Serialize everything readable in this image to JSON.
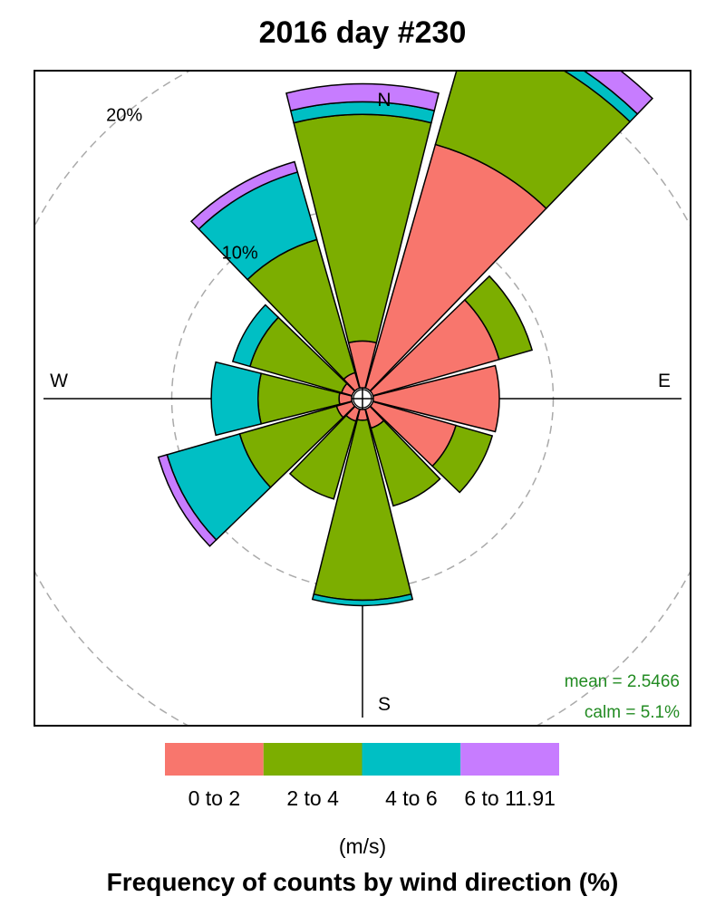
{
  "chart_data": {
    "type": "windrose",
    "title": "2016 day #230",
    "compass": {
      "north": "N",
      "east": "E",
      "south": "S",
      "west": "W"
    },
    "rings": [
      {
        "value": 10,
        "label": "10%"
      },
      {
        "value": 20,
        "label": "20%"
      }
    ],
    "directions": [
      0,
      30,
      60,
      90,
      120,
      150,
      180,
      210,
      240,
      270,
      300,
      330
    ],
    "series": [
      {
        "name": "0 to 2",
        "color": "#F8766D",
        "values": [
          2.6,
          14.1,
          7.3,
          7.0,
          4.8,
          1.1,
          0.6,
          0.7,
          0.9,
          0.7,
          0.6,
          0.9
        ]
      },
      {
        "name": "2 to 4",
        "color": "#7CAE00",
        "values": [
          12.6,
          6.7,
          1.9,
          0.0,
          2.1,
          4.5,
          10.0,
          4.5,
          5.6,
          4.5,
          5.3,
          7.7
        ]
      },
      {
        "name": "4 to 6",
        "color": "#00BFC4",
        "values": [
          0.7,
          0.6,
          0.0,
          0.0,
          0.0,
          0.0,
          0.3,
          0.0,
          4.2,
          2.6,
          1.0,
          3.9
        ]
      },
      {
        "name": "6 to 11.91",
        "color": "#C77CFF",
        "values": [
          1.0,
          1.2,
          0.0,
          0.0,
          0.0,
          0.0,
          0.0,
          0.0,
          0.5,
          0.0,
          0.0,
          0.6
        ]
      }
    ],
    "mean_label": "mean = 2.5466",
    "calm_label": "calm = 5.1%",
    "legend_unit": "(m/s)",
    "footer": "Frequency of counts by wind direction (%)"
  }
}
